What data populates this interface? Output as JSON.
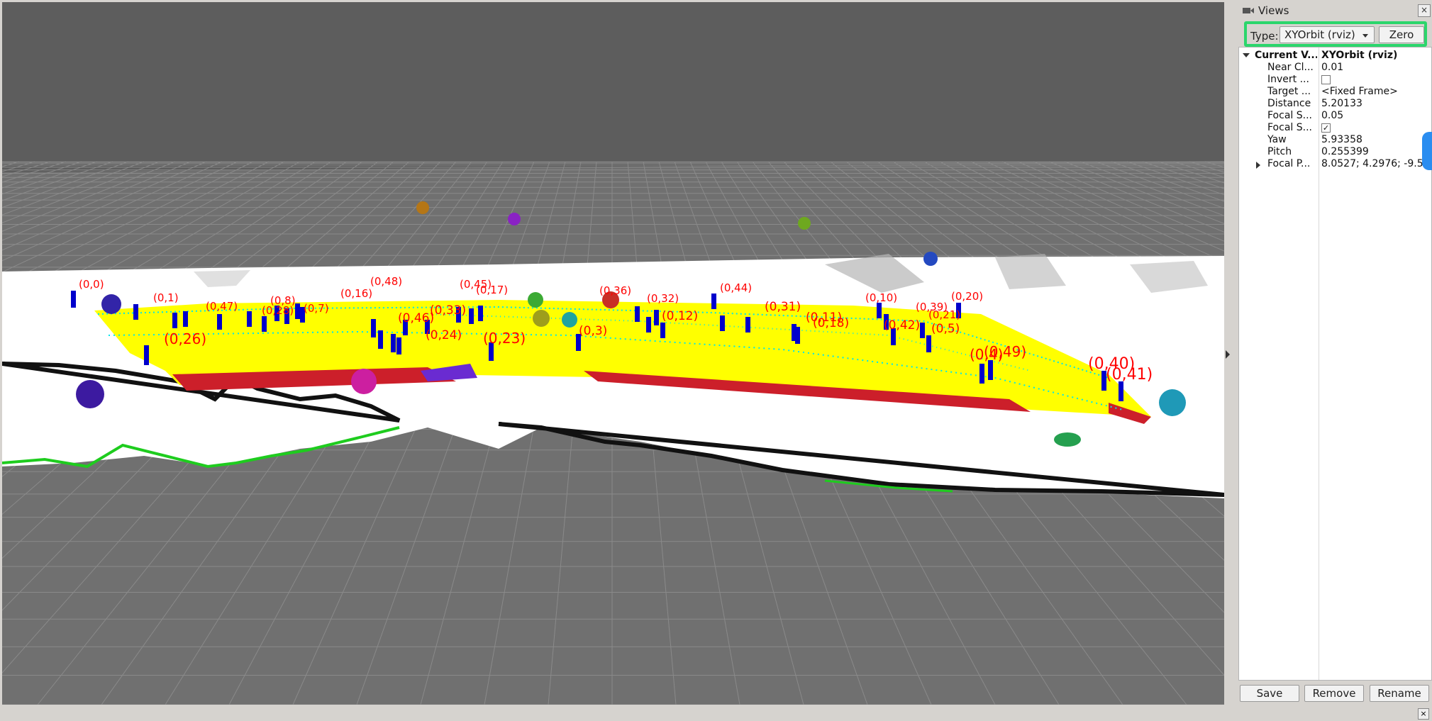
{
  "views": {
    "title": "Views",
    "type_label": "Type:",
    "type_value": "XYOrbit (rviz)",
    "zero_label": "Zero",
    "properties": [
      {
        "key": "Current V...",
        "value": "XYOrbit (rviz)",
        "bold": true
      },
      {
        "key": "Near Cl...",
        "value": "0.01"
      },
      {
        "key": "Invert ...",
        "value": "",
        "checkbox": false
      },
      {
        "key": "Target ...",
        "value": "<Fixed Frame>"
      },
      {
        "key": "Distance",
        "value": "5.20133"
      },
      {
        "key": "Focal S...",
        "value": "0.05"
      },
      {
        "key": "Focal S...",
        "value": "",
        "checkbox": true
      },
      {
        "key": "Yaw",
        "value": "5.93358"
      },
      {
        "key": "Pitch",
        "value": "0.255399"
      },
      {
        "key": "Focal P...",
        "value": "8.0527; 4.2976; -9.5..."
      }
    ],
    "save_label": "Save",
    "remove_label": "Remove",
    "rename_label": "Rename",
    "close_glyph": "×"
  },
  "time_panel": {
    "close_glyph": "×"
  },
  "scene": {
    "background_color": "#707070",
    "sky_color": "#5a5a5a",
    "grid_color": "#9a9a9a",
    "map_free_color": "#ffffff",
    "map_obstacle_color": "#000000",
    "path_fill_color": "#ffff00",
    "path_edge_color": "#cc1f2a",
    "scan_color": "#00e5ee",
    "marker_color": "#0000cc",
    "highlight_color": "#2bd66c",
    "labels": [
      {
        "text": "(0,0)",
        "big": false
      },
      {
        "text": "(0,1)",
        "big": false
      },
      {
        "text": "(0,26)",
        "big": true
      },
      {
        "text": "(0,47)",
        "big": false
      },
      {
        "text": "(0,28)",
        "big": false
      },
      {
        "text": "(0,8)",
        "big": false
      },
      {
        "text": "(0,7)",
        "big": false
      },
      {
        "text": "(0,16)",
        "big": false
      },
      {
        "text": "(0,48)",
        "big": false
      },
      {
        "text": "(0,46)",
        "big": false
      },
      {
        "text": "(0,33)",
        "big": false
      },
      {
        "text": "(0,45)",
        "big": false
      },
      {
        "text": "(0,17)",
        "big": false
      },
      {
        "text": "(0,23)",
        "big": true
      },
      {
        "text": "(0,24)",
        "big": false
      },
      {
        "text": "(0,3)",
        "big": false
      },
      {
        "text": "(0,36)",
        "big": false
      },
      {
        "text": "(0,32)",
        "big": false
      },
      {
        "text": "(0,12)",
        "big": false
      },
      {
        "text": "(0,44)",
        "big": false
      },
      {
        "text": "(0,31)",
        "big": false
      },
      {
        "text": "(0,11)",
        "big": false
      },
      {
        "text": "(0,18)",
        "big": false
      },
      {
        "text": "(0,10)",
        "big": false
      },
      {
        "text": "(0,42)",
        "big": false
      },
      {
        "text": "(0,39)",
        "big": false
      },
      {
        "text": "(0,21)",
        "big": false
      },
      {
        "text": "(0,20)",
        "big": false
      },
      {
        "text": "(0,5)",
        "big": false
      },
      {
        "text": "(0,49)",
        "big": true
      },
      {
        "text": "(0,4)",
        "big": true
      },
      {
        "text": "(0,40)",
        "big": true
      },
      {
        "text": "(0,41)",
        "big": true
      }
    ]
  }
}
